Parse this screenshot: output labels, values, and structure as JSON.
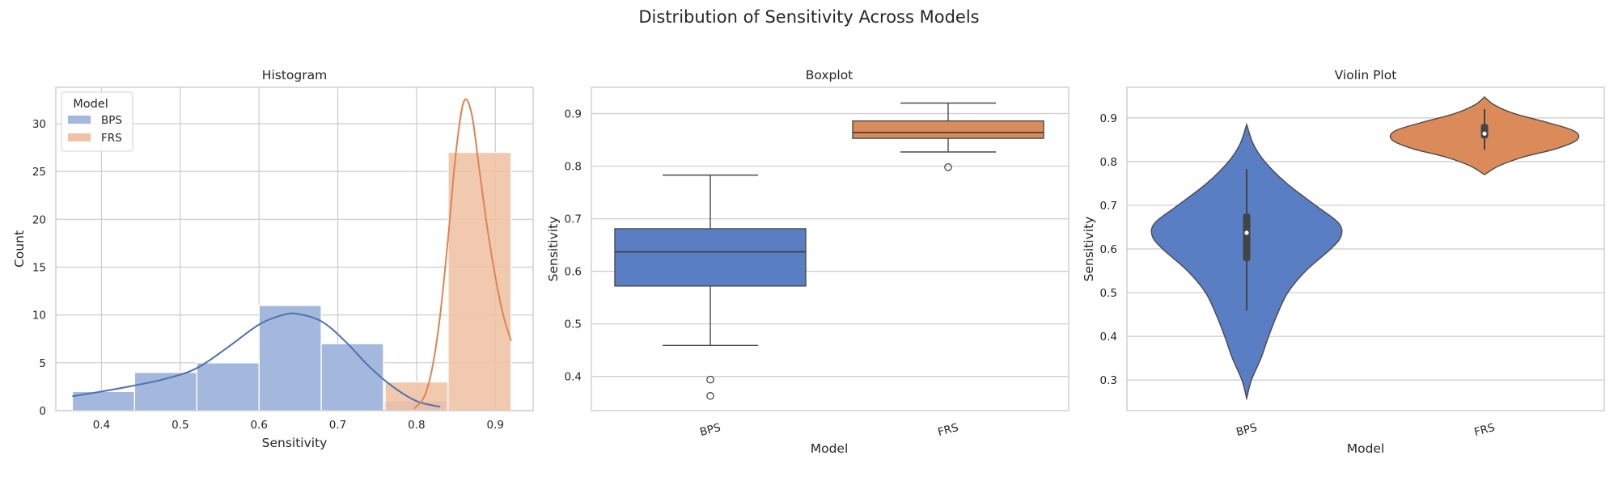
{
  "figure": {
    "title": "Distribution of Sensitivity Across Models"
  },
  "palette": {
    "BPS": "#5a7ec4",
    "FRS": "#db8a5a",
    "BPS_hist": "#a4b7dc",
    "FRS_hist": "#efc2a4",
    "BPS_kde": "#4c72b0",
    "FRS_kde": "#dd8452",
    "median_line": "#3c3c3c"
  },
  "chart_data": [
    {
      "type": "bar",
      "subtype": "histogram_with_kde",
      "title": "Histogram",
      "xlabel": "Sensitivity",
      "ylabel": "Count",
      "xlim": [
        0.342,
        0.948
      ],
      "ylim": [
        0,
        33.8
      ],
      "xticks": [
        "0.4",
        "0.5",
        "0.6",
        "0.7",
        "0.8",
        "0.9"
      ],
      "yticks": [
        "0",
        "5",
        "10",
        "15",
        "20",
        "25",
        "30"
      ],
      "grid": true,
      "legend": {
        "title": "Model",
        "placement": "top-left",
        "entries": [
          "BPS",
          "FRS"
        ]
      },
      "series": [
        {
          "name": "BPS",
          "bins": [
            {
              "x0": 0.363,
              "x1": 0.442,
              "count": 2
            },
            {
              "x0": 0.442,
              "x1": 0.521,
              "count": 4
            },
            {
              "x0": 0.521,
              "x1": 0.6,
              "count": 5
            },
            {
              "x0": 0.6,
              "x1": 0.679,
              "count": 11
            },
            {
              "x0": 0.679,
              "x1": 0.758,
              "count": 7
            },
            {
              "x0": 0.758,
              "x1": 0.837,
              "count": 1
            }
          ],
          "kde": {
            "x": [
              0.363,
              0.4,
              0.44,
              0.48,
              0.52,
              0.56,
              0.6,
              0.63,
              0.65,
              0.68,
              0.71,
              0.74,
              0.77,
              0.8,
              0.83
            ],
            "y": [
              1.5,
              2.0,
              2.6,
              3.3,
              4.4,
              6.6,
              9.0,
              10.0,
              10.1,
              9.3,
              7.2,
              4.6,
              2.5,
              1.0,
              0.4
            ]
          }
        },
        {
          "name": "FRS",
          "bins": [
            {
              "x0": 0.76,
              "x1": 0.84,
              "count": 3
            },
            {
              "x0": 0.84,
              "x1": 0.92,
              "count": 27
            }
          ],
          "kde": {
            "x": [
              0.797,
              0.81,
              0.82,
              0.83,
              0.84,
              0.85,
              0.86,
              0.87,
              0.88,
              0.89,
              0.9,
              0.91,
              0.92
            ],
            "y": [
              0.2,
              1.5,
              4.5,
              10.0,
              18.0,
              27.0,
              32.3,
              31.0,
              25.0,
              19.0,
              14.0,
              10.0,
              7.3
            ]
          }
        }
      ]
    },
    {
      "type": "boxplot",
      "title": "Boxplot",
      "xlabel": "Model",
      "ylabel": "Sensitivity",
      "categories": [
        "BPS",
        "FRS"
      ],
      "ylim": [
        0.335,
        0.95
      ],
      "yticks": [
        "0.4",
        "0.5",
        "0.6",
        "0.7",
        "0.8",
        "0.9"
      ],
      "grid": true,
      "boxes": [
        {
          "name": "BPS",
          "q1": 0.572,
          "median": 0.637,
          "q3": 0.681,
          "whisker_low": 0.459,
          "whisker_high": 0.783,
          "outliers": [
            0.394,
            0.363
          ]
        },
        {
          "name": "FRS",
          "q1": 0.853,
          "median": 0.864,
          "q3": 0.886,
          "whisker_low": 0.827,
          "whisker_high": 0.92,
          "outliers": [
            0.798
          ]
        }
      ]
    },
    {
      "type": "violin",
      "title": "Violin Plot",
      "xlabel": "Model",
      "ylabel": "Sensitivity",
      "categories": [
        "BPS",
        "FRS"
      ],
      "ylim": [
        0.23,
        0.97
      ],
      "yticks": [
        "0.3",
        "0.4",
        "0.5",
        "0.6",
        "0.7",
        "0.8",
        "0.9"
      ],
      "grid": true,
      "violins": [
        {
          "name": "BPS",
          "y": [
            0.258,
            0.3,
            0.35,
            0.4,
            0.45,
            0.5,
            0.55,
            0.6,
            0.63,
            0.66,
            0.7,
            0.75,
            0.8,
            0.84,
            0.885
          ],
          "density": [
            0.0,
            0.05,
            0.15,
            0.23,
            0.32,
            0.43,
            0.62,
            0.88,
            0.99,
            0.96,
            0.72,
            0.42,
            0.19,
            0.07,
            0.0
          ],
          "q1": 0.572,
          "median": 0.637,
          "q3": 0.681,
          "whisker_low": 0.459,
          "whisker_high": 0.783
        },
        {
          "name": "FRS",
          "y": [
            0.77,
            0.79,
            0.81,
            0.83,
            0.85,
            0.87,
            0.89,
            0.91,
            0.93,
            0.948
          ],
          "density": [
            0.0,
            0.15,
            0.4,
            0.76,
            0.97,
            0.94,
            0.65,
            0.31,
            0.1,
            0.0
          ],
          "q1": 0.853,
          "median": 0.864,
          "q3": 0.886,
          "whisker_low": 0.827,
          "whisker_high": 0.92
        }
      ]
    }
  ]
}
